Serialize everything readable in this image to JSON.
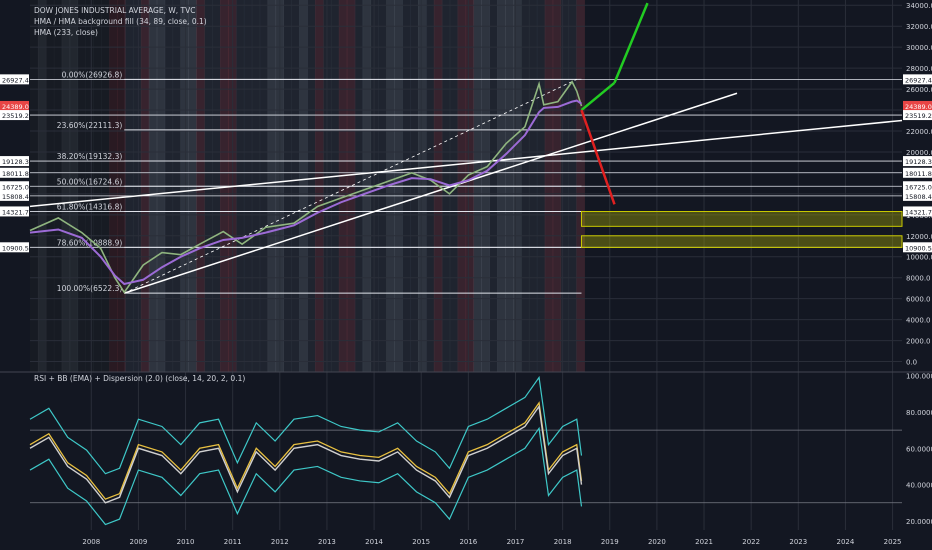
{
  "legend": {
    "title": "DOW JONES INDUSTRIAL AVERAGE, W, TVC",
    "hma_fill": "HMA / HMA background fill (34, 89, close, 0.1)",
    "hma233": "HMA (233, close)",
    "rsi": "RSI + BB (EMA) + Dispersion (2.0) (close, 14, 20, 2, 0.1)"
  },
  "price_axis": {
    "ticks": [
      "34000.0",
      "32000.0",
      "30000.0",
      "28000.0",
      "26000.0",
      "24000.0",
      "22000.0",
      "20000.0",
      "18000.0",
      "16000.0",
      "14000.0",
      "12000.0",
      "10000.0",
      "8000.0",
      "6000.0",
      "4000.0",
      "2000.0",
      "0.0"
    ],
    "tick_values": [
      34000,
      32000,
      30000,
      28000,
      26000,
      24000,
      22000,
      20000,
      18000,
      16000,
      14000,
      12000,
      10000,
      8000,
      6000,
      4000,
      2000,
      0
    ]
  },
  "rsi_axis": {
    "ticks": [
      "100.0000",
      "80.0000",
      "60.0000",
      "40.0000",
      "20.0000"
    ],
    "tick_values": [
      100,
      80,
      60,
      40,
      20
    ]
  },
  "time_axis": {
    "labels": [
      "2008",
      "2009",
      "2010",
      "2011",
      "2012",
      "2013",
      "2014",
      "2015",
      "2016",
      "2017",
      "2018",
      "2019",
      "2020",
      "2021",
      "2022",
      "2023",
      "2024",
      "2025"
    ]
  },
  "fib_levels": [
    {
      "label": "0.00%(26926.8)",
      "value": 26926.8
    },
    {
      "label": "23.60%(22111.3)",
      "value": 22111.3
    },
    {
      "label": "38.20%(19132.3)",
      "value": 19132.3
    },
    {
      "label": "50.00%(16724.6)",
      "value": 16724.6
    },
    {
      "label": "61.80%(14316.8)",
      "value": 14316.8
    },
    {
      "label": "78.60%(10888.9)",
      "value": 10888.9
    },
    {
      "label": "100.00%(6522.3)",
      "value": 6522.3
    }
  ],
  "price_markers": [
    {
      "label": "26927.4",
      "value": 26927.4,
      "color": "#ffffff"
    },
    {
      "label": "24389.0",
      "value": 24389.0,
      "color": "#e84545"
    },
    {
      "label": "23519.2",
      "value": 23519.2,
      "color": "#ffffff"
    },
    {
      "label": "19128.3",
      "value": 19128.3,
      "color": "#ffffff"
    },
    {
      "label": "18011.8",
      "value": 18011.8,
      "color": "#ffffff"
    },
    {
      "label": "16725.0",
      "value": 16725.0,
      "color": "#ffffff"
    },
    {
      "label": "15808.4",
      "value": 15808.4,
      "color": "#ffffff"
    },
    {
      "label": "14321.7",
      "value": 14321.7,
      "color": "#ffffff"
    },
    {
      "label": "10900.5",
      "value": 10900.5,
      "color": "#ffffff"
    }
  ],
  "chart_data": {
    "type": "line",
    "title": "DOW JONES INDUSTRIAL AVERAGE, W, TVC",
    "xlabel": "",
    "ylabel": "",
    "ylim": [
      -1000,
      34500
    ],
    "x": [
      2007.2,
      2007.8,
      2008.3,
      2008.7,
      2009.0,
      2009.2,
      2009.6,
      2010.0,
      2010.4,
      2010.8,
      2011.3,
      2011.7,
      2012.2,
      2012.8,
      2013.3,
      2013.8,
      2014.3,
      2014.8,
      2015.3,
      2015.7,
      2016.1,
      2016.5,
      2016.9,
      2017.3,
      2017.7,
      2018.0,
      2018.1,
      2018.4,
      2018.7,
      2018.8,
      2018.9
    ],
    "series": [
      {
        "values": [
          12500,
          13700,
          12300,
          10800,
          8000,
          6600,
          9200,
          10400,
          10200,
          11200,
          12400,
          11200,
          12800,
          13200,
          14800,
          15600,
          16400,
          17200,
          18000,
          17300,
          16000,
          17800,
          18600,
          20800,
          22400,
          26500,
          24500,
          24800,
          26700,
          25800,
          24389
        ]
      }
    ],
    "rsi": {
      "ylim": [
        15,
        102
      ],
      "x": [
        2007.2,
        2007.6,
        2008.0,
        2008.4,
        2008.8,
        2009.1,
        2009.5,
        2010.0,
        2010.4,
        2010.8,
        2011.2,
        2011.6,
        2012.0,
        2012.4,
        2012.8,
        2013.3,
        2013.8,
        2014.2,
        2014.6,
        2015.0,
        2015.4,
        2015.8,
        2016.1,
        2016.5,
        2016.9,
        2017.3,
        2017.7,
        2018.0,
        2018.2,
        2018.5,
        2018.8,
        2018.9
      ],
      "values": [
        62,
        68,
        52,
        45,
        32,
        35,
        62,
        58,
        48,
        60,
        62,
        38,
        60,
        50,
        62,
        64,
        58,
        56,
        55,
        60,
        50,
        44,
        35,
        58,
        62,
        68,
        74,
        85,
        48,
        58,
        62,
        42
      ]
    }
  }
}
